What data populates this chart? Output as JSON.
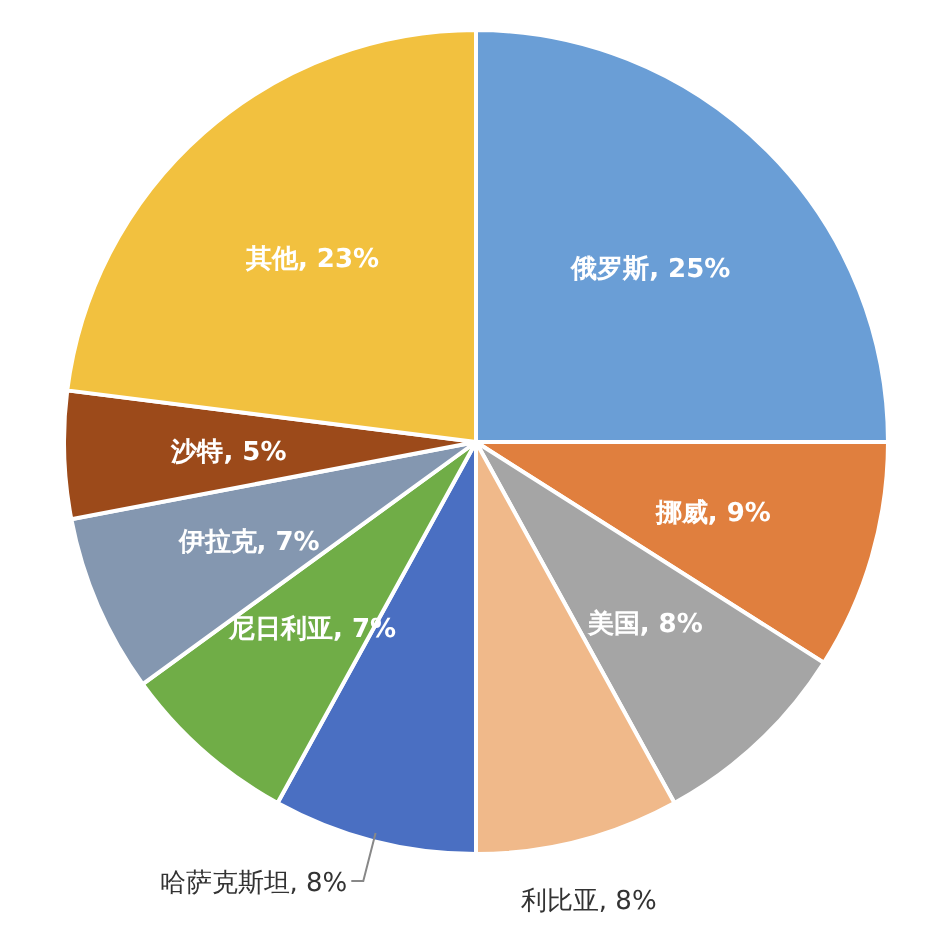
{
  "chart_data": {
    "type": "pie",
    "categories": [
      "俄罗斯",
      "挪威",
      "美国",
      "利比亚",
      "哈萨克斯坦",
      "尼日利亚",
      "伊拉克",
      "沙特",
      "其他"
    ],
    "values": [
      25,
      9,
      8,
      8,
      8,
      7,
      7,
      5,
      23
    ],
    "value_labels": [
      "25%",
      "9%",
      "8%",
      "8%",
      "8%",
      "7%",
      "7%",
      "5%",
      "23%"
    ],
    "colors": [
      "#6a9ed6",
      "#e07f3e",
      "#a5a5a5",
      "#f0b98a",
      "#4a6fc2",
      "#70ad47",
      "#8497b0",
      "#9c4a1a",
      "#f2c13f"
    ]
  }
}
